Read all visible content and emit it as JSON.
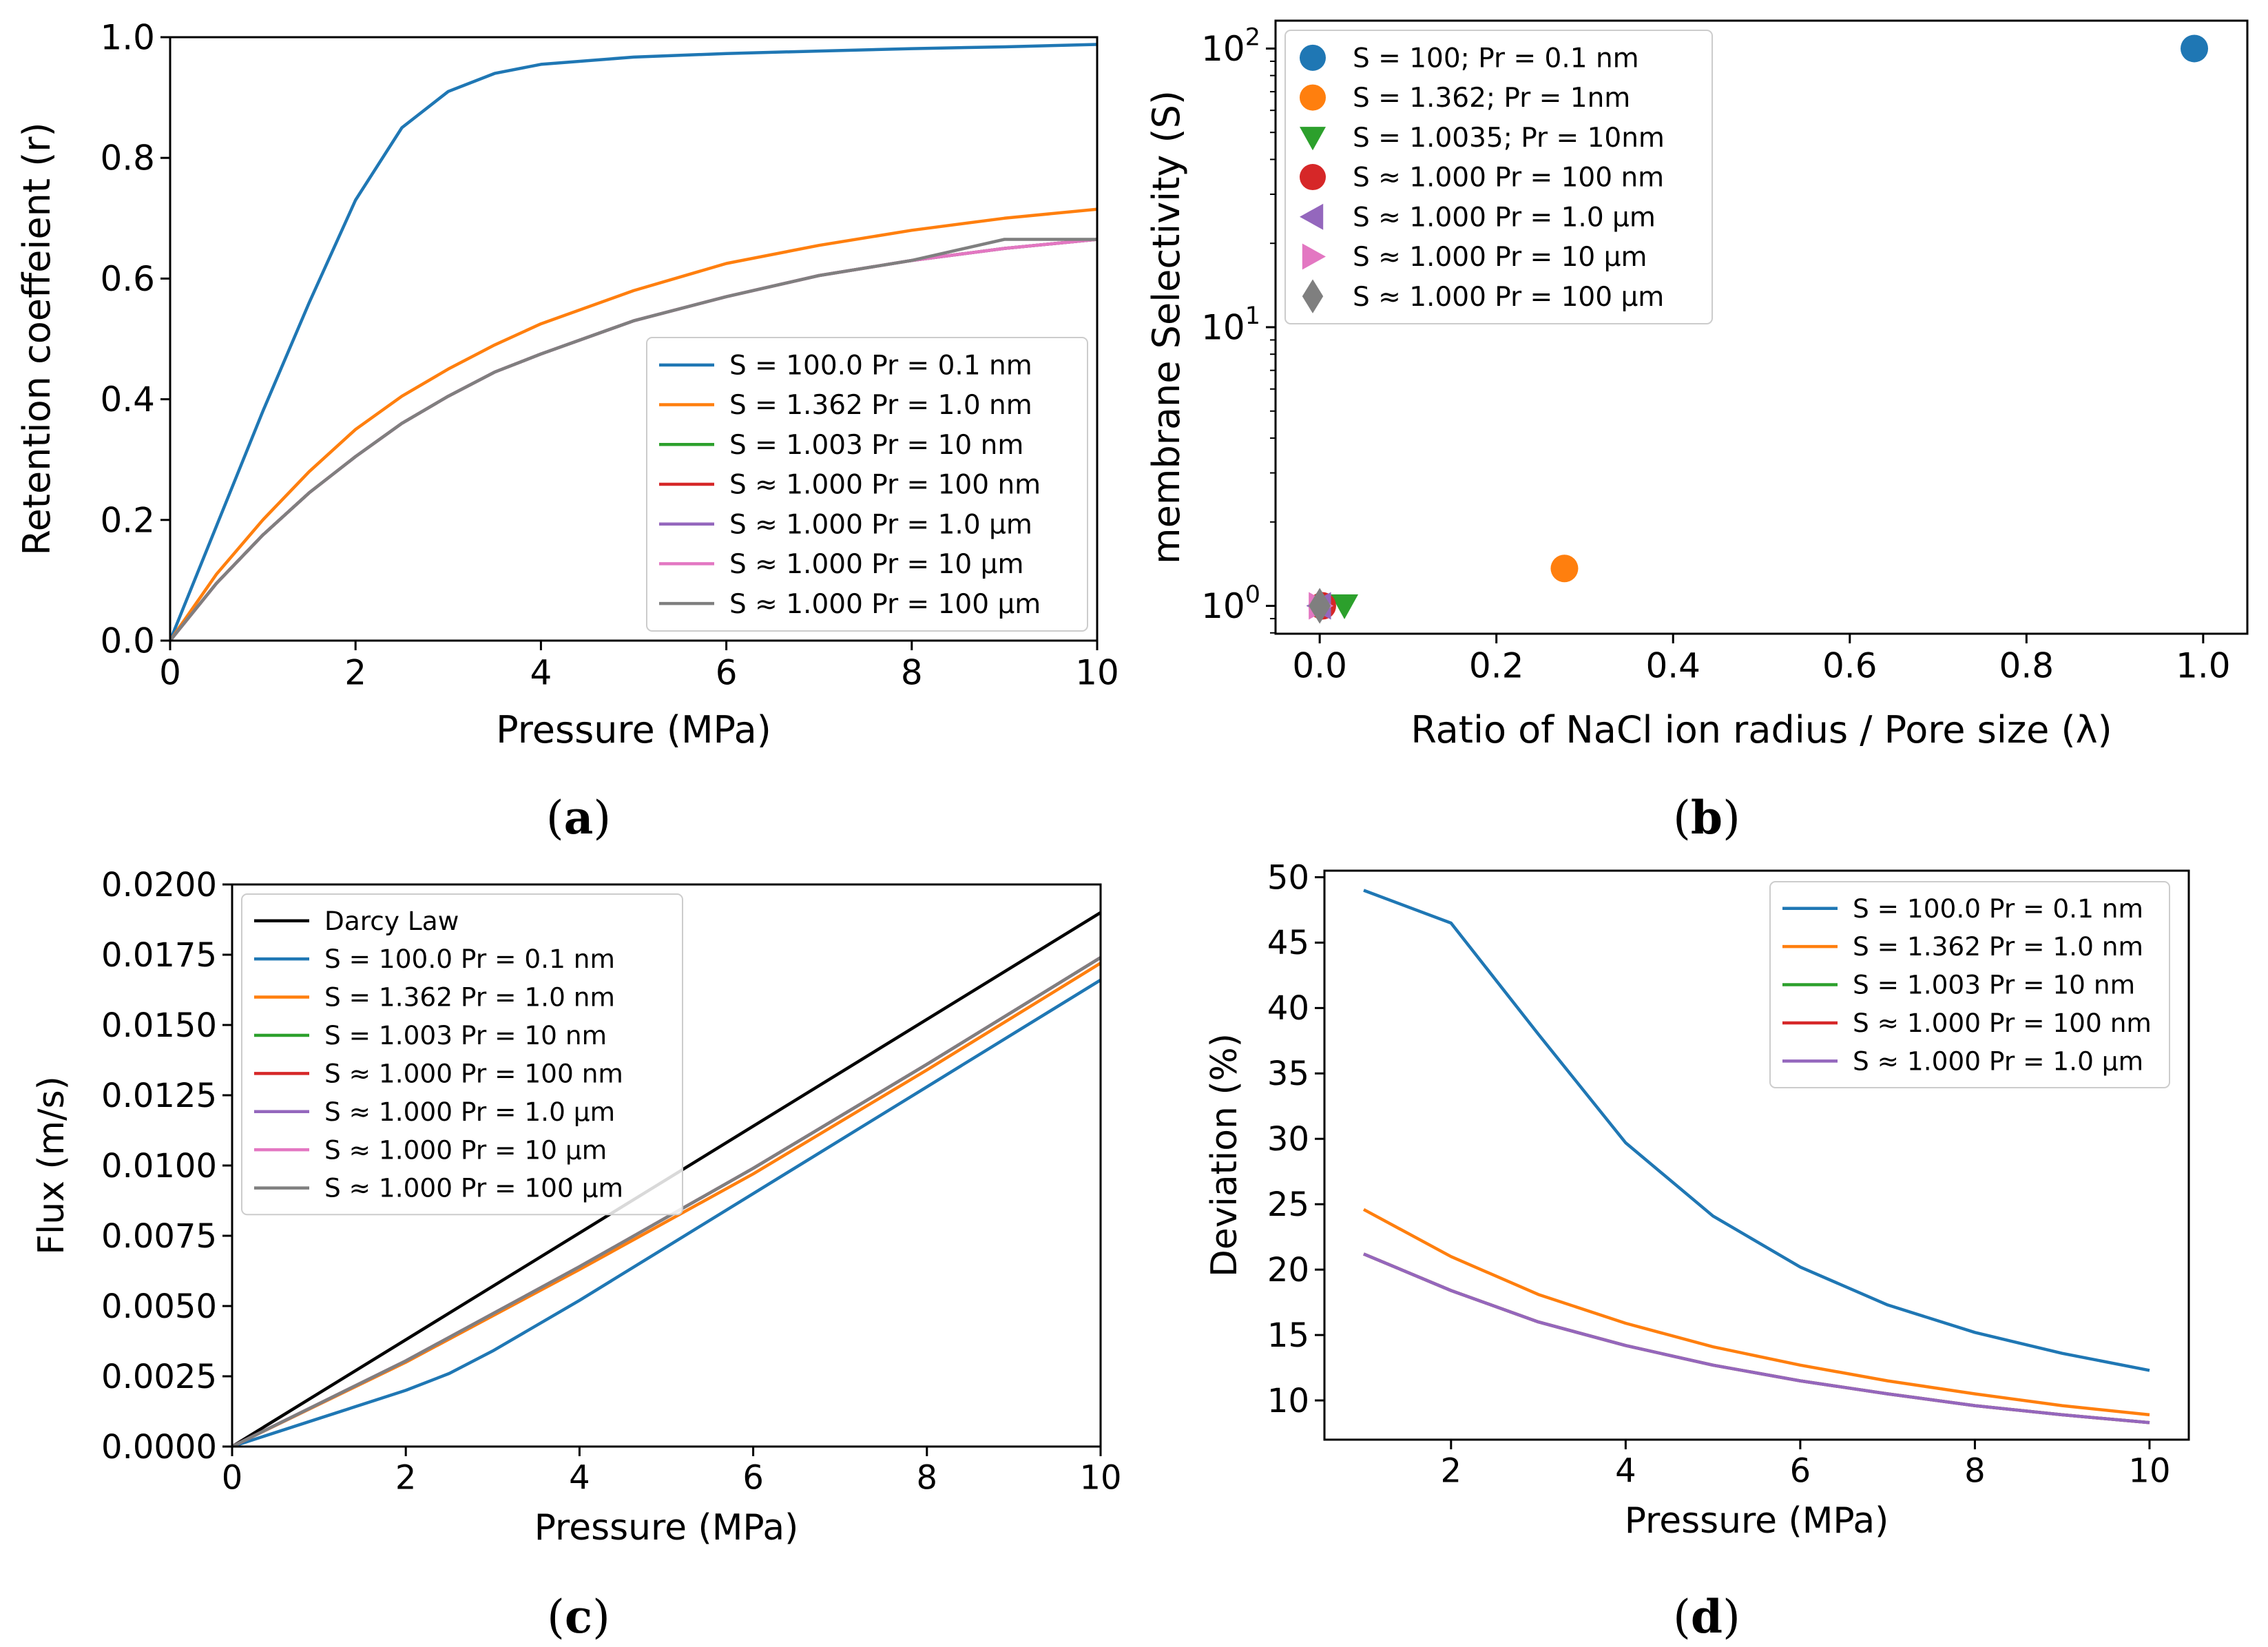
{
  "chart_data": [
    {
      "id": "a",
      "type": "line",
      "panel_label": "a",
      "title": "",
      "xlabel": "Pressure (MPa)",
      "ylabel": "Retention coeffeient (r)",
      "xlim": [
        0,
        10
      ],
      "ylim": [
        0,
        1.0
      ],
      "xticks": [
        0,
        2,
        4,
        6,
        8,
        10
      ],
      "yticks": [
        0.0,
        0.2,
        0.4,
        0.6,
        0.8,
        1.0
      ],
      "xtick_labels": [
        "0",
        "2",
        "4",
        "6",
        "8",
        "10"
      ],
      "ytick_labels": [
        "0.0",
        "0.2",
        "0.4",
        "0.6",
        "0.8",
        "1.0"
      ],
      "legend_position": "lower-right",
      "series": [
        {
          "name": "S = 100.0  Pr = 0.1 nm",
          "color": "#1f77b4",
          "x": [
            0,
            0.5,
            1,
            1.5,
            2,
            2.5,
            3,
            3.5,
            4,
            5,
            6,
            7,
            8,
            9,
            10
          ],
          "y": [
            0,
            0.19,
            0.38,
            0.56,
            0.73,
            0.85,
            0.91,
            0.94,
            0.955,
            0.967,
            0.973,
            0.977,
            0.981,
            0.984,
            0.988
          ]
        },
        {
          "name": "S = 1.362  Pr = 1.0 nm",
          "color": "#ff7f0e",
          "x": [
            0,
            0.5,
            1,
            1.5,
            2,
            2.5,
            3,
            3.5,
            4,
            5,
            6,
            7,
            8,
            9,
            10
          ],
          "y": [
            0,
            0.11,
            0.2,
            0.28,
            0.35,
            0.405,
            0.45,
            0.49,
            0.525,
            0.58,
            0.625,
            0.655,
            0.68,
            0.7,
            0.715
          ]
        },
        {
          "name": "S = 1.003  Pr = 10 nm",
          "color": "#2ca02c",
          "x": [
            0,
            0.5,
            1,
            1.5,
            2,
            2.5,
            3,
            3.5,
            4,
            5,
            6,
            7,
            8,
            9,
            10
          ],
          "y": [
            0,
            0.095,
            0.175,
            0.245,
            0.305,
            0.36,
            0.405,
            0.445,
            0.475,
            0.53,
            0.57,
            0.605,
            0.63,
            0.65,
            0.665
          ]
        },
        {
          "name": "S ≈ 1.000  Pr = 100 nm",
          "color": "#d62728",
          "x": [
            0,
            0.5,
            1,
            1.5,
            2,
            2.5,
            3,
            3.5,
            4,
            5,
            6,
            7,
            8,
            9,
            10
          ],
          "y": [
            0,
            0.095,
            0.175,
            0.245,
            0.305,
            0.36,
            0.405,
            0.445,
            0.475,
            0.53,
            0.57,
            0.605,
            0.63,
            0.65,
            0.665
          ]
        },
        {
          "name": "S ≈ 1.000  Pr = 1.0 µm",
          "color": "#9467bd",
          "x": [
            0,
            0.5,
            1,
            1.5,
            2,
            2.5,
            3,
            3.5,
            4,
            5,
            6,
            7,
            8,
            9,
            10
          ],
          "y": [
            0,
            0.095,
            0.175,
            0.245,
            0.305,
            0.36,
            0.405,
            0.445,
            0.475,
            0.53,
            0.57,
            0.605,
            0.63,
            0.65,
            0.665
          ]
        },
        {
          "name": "S ≈ 1.000  Pr = 10 µm",
          "color": "#e377c2",
          "x": [
            0,
            0.5,
            1,
            1.5,
            2,
            2.5,
            3,
            3.5,
            4,
            5,
            6,
            7,
            8,
            9,
            10
          ],
          "y": [
            0,
            0.095,
            0.175,
            0.245,
            0.305,
            0.36,
            0.405,
            0.445,
            0.475,
            0.53,
            0.57,
            0.605,
            0.63,
            0.65,
            0.665
          ]
        },
        {
          "name": "S ≈ 1.000  Pr = 100 µm",
          "color": "#7f7f7f",
          "x": [
            0,
            0.5,
            1,
            1.5,
            2,
            2.5,
            3,
            3.5,
            4,
            5,
            6,
            7,
            8,
            9,
            10
          ],
          "y": [
            0,
            0.095,
            0.175,
            0.245,
            0.305,
            0.36,
            0.405,
            0.445,
            0.475,
            0.53,
            0.57,
            0.605,
            0.63,
            0.665,
            0.665
          ]
        }
      ]
    },
    {
      "id": "b",
      "type": "scatter",
      "panel_label": "b",
      "title": "",
      "xlabel": "Ratio of NaCl ion radius / Pore size (λ)",
      "ylabel": "membrane Selectivity (S)",
      "xlim": [
        -0.05,
        1.05
      ],
      "ylim_log10": [
        -0.1,
        2.1
      ],
      "yscale": "log",
      "xticks": [
        0.0,
        0.2,
        0.4,
        0.6,
        0.8,
        1.0
      ],
      "xtick_labels": [
        "0.0",
        "0.2",
        "0.4",
        "0.6",
        "0.8",
        "1.0"
      ],
      "yticks_log10": [
        0,
        1,
        2
      ],
      "ytick_base": "10",
      "ytick_exponents": [
        "0",
        "1",
        "2"
      ],
      "legend_position": "upper-left",
      "series": [
        {
          "name": "S = 100; Pr = 0.1 nm",
          "color": "#1f77b4",
          "marker": "circle",
          "x": 0.99,
          "y": 100
        },
        {
          "name": "S = 1.362; Pr = 1nm",
          "color": "#ff7f0e",
          "marker": "circle",
          "x": 0.277,
          "y": 1.362
        },
        {
          "name": "S = 1.0035; Pr = 10nm",
          "color": "#2ca02c",
          "marker": "triangle-down",
          "x": 0.028,
          "y": 1.0035
        },
        {
          "name": "S ≈ 1.000  Pr = 100 nm",
          "color": "#d62728",
          "marker": "circle",
          "x": 0.003,
          "y": 1.0
        },
        {
          "name": "S ≈ 1.000  Pr = 1.0 µm",
          "color": "#9467bd",
          "marker": "triangle-left",
          "x": 0.0003,
          "y": 1.0
        },
        {
          "name": "S ≈ 1.000  Pr = 10 µm",
          "color": "#e377c2",
          "marker": "triangle-right",
          "x": 3e-05,
          "y": 1.0
        },
        {
          "name": "S ≈ 1.000  Pr = 100 µm",
          "color": "#7f7f7f",
          "marker": "diamond",
          "x": 3e-06,
          "y": 1.0
        }
      ]
    },
    {
      "id": "c",
      "type": "line",
      "panel_label": "c",
      "title": "",
      "xlabel": "Pressure (MPa)",
      "ylabel": "Flux (m/s)",
      "xlim": [
        0,
        10
      ],
      "ylim": [
        0,
        0.02
      ],
      "xticks": [
        0,
        2,
        4,
        6,
        8,
        10
      ],
      "yticks": [
        0,
        0.0025,
        0.005,
        0.0075,
        0.01,
        0.0125,
        0.015,
        0.0175,
        0.02
      ],
      "xtick_labels": [
        "0",
        "2",
        "4",
        "6",
        "8",
        "10"
      ],
      "ytick_labels": [
        "0.0000",
        "0.0025",
        "0.0050",
        "0.0075",
        "0.0100",
        "0.0125",
        "0.0150",
        "0.0175",
        "0.0200"
      ],
      "legend_position": "upper-left",
      "series": [
        {
          "name": "Darcy Law",
          "color": "#000000",
          "x": [
            0,
            10
          ],
          "y": [
            0,
            0.019
          ]
        },
        {
          "name": "S = 100.0  Pr = 0.1 nm",
          "color": "#1f77b4",
          "x": [
            0,
            1,
            2,
            2.5,
            3,
            4,
            5,
            6,
            7,
            8,
            9,
            10
          ],
          "y": [
            0,
            0.001,
            0.002,
            0.0026,
            0.0034,
            0.0052,
            0.0071,
            0.009,
            0.0109,
            0.0128,
            0.0147,
            0.0166
          ]
        },
        {
          "name": "S = 1.362  Pr = 1.0 nm",
          "color": "#ff7f0e",
          "x": [
            0,
            2,
            4,
            6,
            8,
            10
          ],
          "y": [
            0,
            0.003,
            0.0063,
            0.0097,
            0.0134,
            0.0172
          ]
        },
        {
          "name": "S = 1.003  Pr = 10 nm",
          "color": "#2ca02c",
          "x": [
            0,
            2,
            4,
            6,
            8,
            10
          ],
          "y": [
            0,
            0.00305,
            0.0064,
            0.0099,
            0.0136,
            0.0174
          ]
        },
        {
          "name": "S ≈ 1.000  Pr = 100 nm",
          "color": "#d62728",
          "x": [
            0,
            2,
            4,
            6,
            8,
            10
          ],
          "y": [
            0,
            0.00305,
            0.0064,
            0.0099,
            0.0136,
            0.0174
          ]
        },
        {
          "name": "S ≈ 1.000  Pr = 1.0 µm",
          "color": "#9467bd",
          "x": [
            0,
            2,
            4,
            6,
            8,
            10
          ],
          "y": [
            0,
            0.00305,
            0.0064,
            0.0099,
            0.0136,
            0.0174
          ]
        },
        {
          "name": "S ≈ 1.000  Pr = 10 µm",
          "color": "#e377c2",
          "x": [
            0,
            2,
            4,
            6,
            8,
            10
          ],
          "y": [
            0,
            0.00305,
            0.0064,
            0.0099,
            0.0136,
            0.0174
          ]
        },
        {
          "name": "S ≈ 1.000  Pr = 100 µm",
          "color": "#7f7f7f",
          "x": [
            0,
            2,
            4,
            6,
            8,
            10
          ],
          "y": [
            0,
            0.00305,
            0.0064,
            0.0099,
            0.0136,
            0.0174
          ]
        }
      ]
    },
    {
      "id": "d",
      "type": "line",
      "panel_label": "d",
      "title": "",
      "xlabel": "Pressure (MPa)",
      "ylabel": "Deviation (%)",
      "xlim": [
        0.55,
        10.45
      ],
      "ylim": [
        7.0,
        50.5
      ],
      "xticks": [
        2,
        4,
        6,
        8,
        10
      ],
      "yticks": [
        10,
        15,
        20,
        25,
        30,
        35,
        40,
        45,
        50
      ],
      "xtick_labels": [
        "2",
        "4",
        "6",
        "8",
        "10"
      ],
      "ytick_labels": [
        "10",
        "15",
        "20",
        "25",
        "30",
        "35",
        "40",
        "45",
        "50"
      ],
      "legend_position": "upper-right",
      "series": [
        {
          "name": "S = 100.0  Pr = 0.1 nm",
          "color": "#1f77b4",
          "x": [
            1,
            2,
            3,
            4,
            5,
            6,
            7,
            8,
            9,
            10
          ],
          "y": [
            49.0,
            46.5,
            38.0,
            29.7,
            24.1,
            20.2,
            17.3,
            15.2,
            13.6,
            12.3
          ]
        },
        {
          "name": "S = 1.362  Pr = 1.0 nm",
          "color": "#ff7f0e",
          "x": [
            1,
            2,
            3,
            4,
            5,
            6,
            7,
            8,
            9,
            10
          ],
          "y": [
            24.6,
            21.0,
            18.1,
            15.9,
            14.1,
            12.7,
            11.5,
            10.5,
            9.6,
            8.9
          ]
        },
        {
          "name": "S = 1.003  Pr = 10 nm",
          "color": "#2ca02c",
          "x": [
            1,
            2,
            3,
            4,
            5,
            6,
            7,
            8,
            9,
            10
          ],
          "y": [
            21.2,
            18.4,
            16.0,
            14.2,
            12.7,
            11.5,
            10.5,
            9.6,
            8.9,
            8.3
          ]
        },
        {
          "name": "S ≈ 1.000  Pr = 100 nm",
          "color": "#d62728",
          "x": [
            1,
            2,
            3,
            4,
            5,
            6,
            7,
            8,
            9,
            10
          ],
          "y": [
            21.2,
            18.4,
            16.0,
            14.2,
            12.7,
            11.5,
            10.5,
            9.6,
            8.9,
            8.3
          ]
        },
        {
          "name": "S ≈ 1.000  Pr = 1.0 µm",
          "color": "#9467bd",
          "x": [
            1,
            2,
            3,
            4,
            5,
            6,
            7,
            8,
            9,
            10
          ],
          "y": [
            21.2,
            18.4,
            16.0,
            14.2,
            12.7,
            11.5,
            10.5,
            9.6,
            8.9,
            8.3
          ]
        }
      ]
    }
  ]
}
